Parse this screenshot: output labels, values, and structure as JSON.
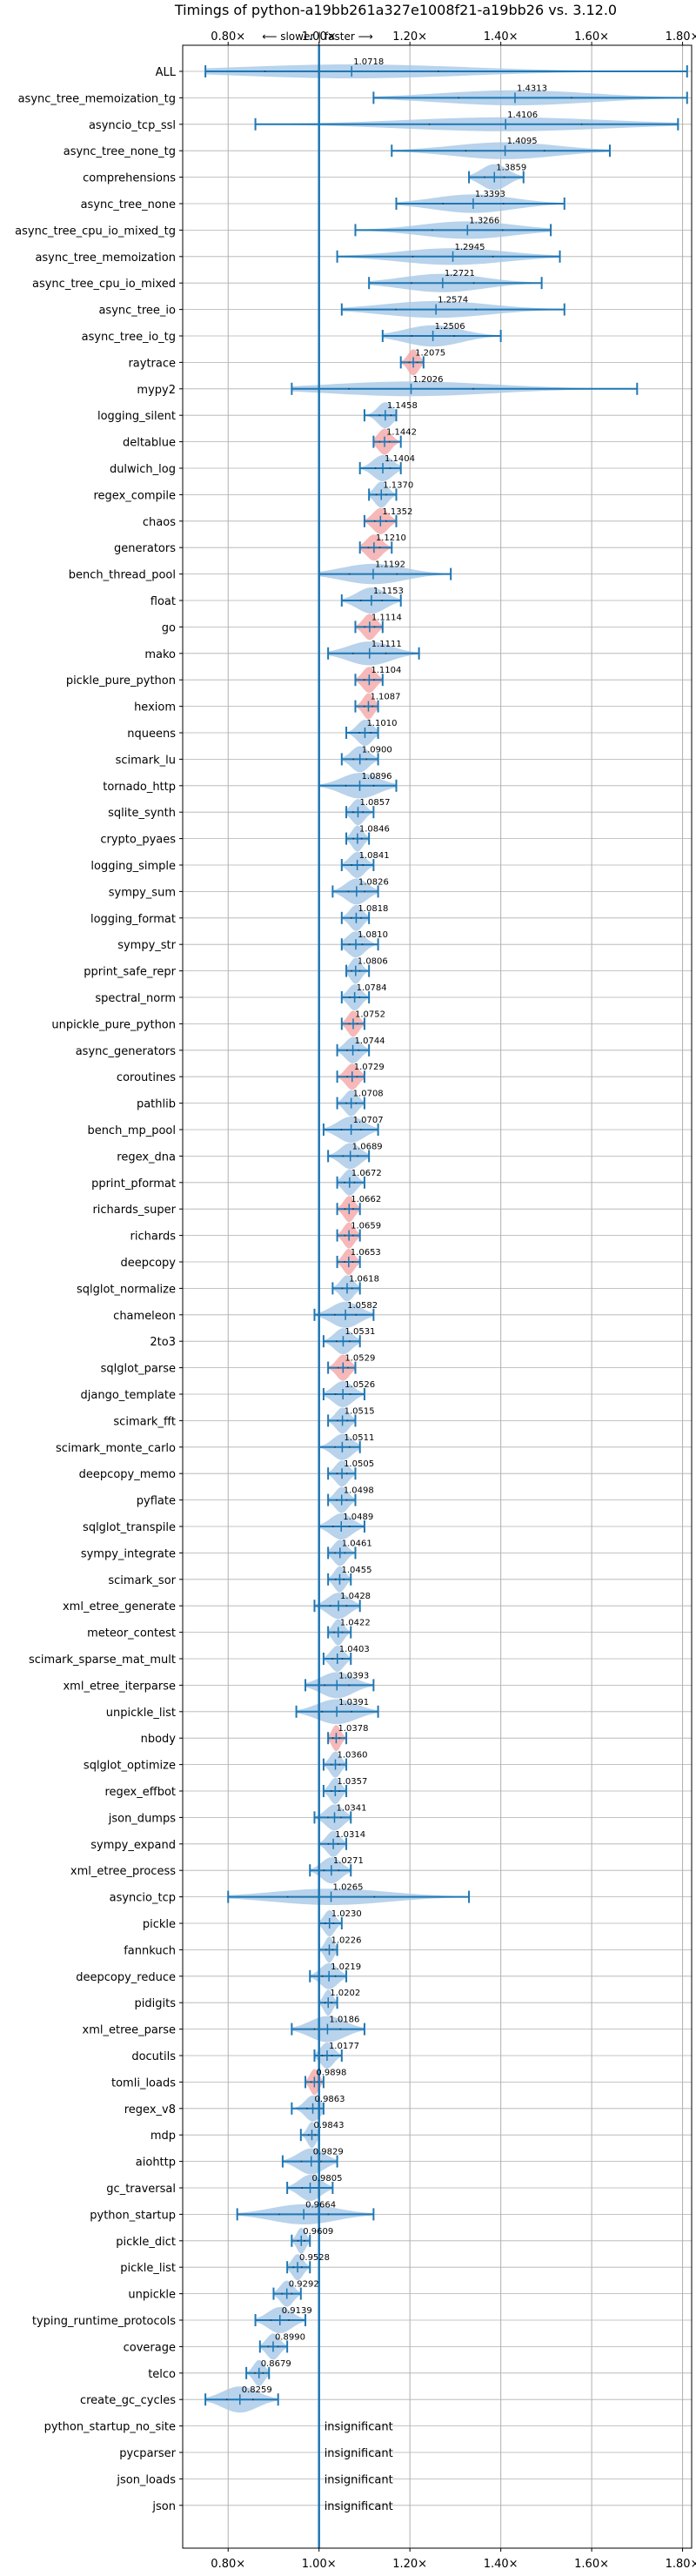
{
  "chart_data": {
    "type": "violin",
    "title": "Timings of python-a19bb261a327e1008f21-a19bb26 vs. 3.12.0",
    "direction_label": "⟵ slower | faster ⟶",
    "xlim": [
      0.7,
      1.82
    ],
    "x_ticks": [
      0.8,
      1.0,
      1.2,
      1.4,
      1.6,
      1.8
    ],
    "x_tick_labels": [
      "0.80×",
      "1.00×",
      "1.20×",
      "1.40×",
      "1.60×",
      "1.80×"
    ],
    "grid": true,
    "insignificant_text": "insignificant",
    "colors": {
      "violin": "#a6c8e6",
      "highlight": "#f4a6a6",
      "line": "#1f77b4",
      "grid": "#b0b0b0"
    },
    "benchmarks": [
      {
        "name": "ALL",
        "value": 1.0718,
        "label": "1.0718",
        "min": 0.75,
        "max": 1.81,
        "highlight": false,
        "insignificant": false
      },
      {
        "name": "async_tree_memoization_tg",
        "value": 1.4313,
        "label": "1.4313",
        "min": 1.12,
        "max": 1.81,
        "highlight": false,
        "insignificant": false
      },
      {
        "name": "asyncio_tcp_ssl",
        "value": 1.4106,
        "label": "1.4106",
        "min": 0.86,
        "max": 1.79,
        "highlight": false,
        "insignificant": false
      },
      {
        "name": "async_tree_none_tg",
        "value": 1.4095,
        "label": "1.4095",
        "min": 1.16,
        "max": 1.64,
        "highlight": false,
        "insignificant": false
      },
      {
        "name": "comprehensions",
        "value": 1.3859,
        "label": "1.3859",
        "min": 1.33,
        "max": 1.45,
        "highlight": false,
        "insignificant": false
      },
      {
        "name": "async_tree_none",
        "value": 1.3393,
        "label": "1.3393",
        "min": 1.17,
        "max": 1.54,
        "highlight": false,
        "insignificant": false
      },
      {
        "name": "async_tree_cpu_io_mixed_tg",
        "value": 1.3266,
        "label": "1.3266",
        "min": 1.08,
        "max": 1.51,
        "highlight": false,
        "insignificant": false
      },
      {
        "name": "async_tree_memoization",
        "value": 1.2945,
        "label": "1.2945",
        "min": 1.04,
        "max": 1.53,
        "highlight": false,
        "insignificant": false
      },
      {
        "name": "async_tree_cpu_io_mixed",
        "value": 1.2721,
        "label": "1.2721",
        "min": 1.11,
        "max": 1.49,
        "highlight": false,
        "insignificant": false
      },
      {
        "name": "async_tree_io",
        "value": 1.2574,
        "label": "1.2574",
        "min": 1.05,
        "max": 1.54,
        "highlight": false,
        "insignificant": false
      },
      {
        "name": "async_tree_io_tg",
        "value": 1.2506,
        "label": "1.2506",
        "min": 1.14,
        "max": 1.4,
        "highlight": false,
        "insignificant": false
      },
      {
        "name": "raytrace",
        "value": 1.2075,
        "label": "1.2075",
        "min": 1.18,
        "max": 1.23,
        "highlight": true,
        "insignificant": false
      },
      {
        "name": "mypy2",
        "value": 1.2026,
        "label": "1.2026",
        "min": 0.94,
        "max": 1.7,
        "highlight": false,
        "insignificant": false
      },
      {
        "name": "logging_silent",
        "value": 1.1458,
        "label": "1.1458",
        "min": 1.1,
        "max": 1.17,
        "highlight": false,
        "insignificant": false
      },
      {
        "name": "deltablue",
        "value": 1.1442,
        "label": "1.1442",
        "min": 1.12,
        "max": 1.18,
        "highlight": true,
        "insignificant": false
      },
      {
        "name": "dulwich_log",
        "value": 1.1404,
        "label": "1.1404",
        "min": 1.09,
        "max": 1.18,
        "highlight": false,
        "insignificant": false
      },
      {
        "name": "regex_compile",
        "value": 1.137,
        "label": "1.1370",
        "min": 1.11,
        "max": 1.17,
        "highlight": false,
        "insignificant": false
      },
      {
        "name": "chaos",
        "value": 1.1352,
        "label": "1.1352",
        "min": 1.1,
        "max": 1.17,
        "highlight": true,
        "insignificant": false
      },
      {
        "name": "generators",
        "value": 1.121,
        "label": "1.1210",
        "min": 1.09,
        "max": 1.16,
        "highlight": true,
        "insignificant": false
      },
      {
        "name": "bench_thread_pool",
        "value": 1.1192,
        "label": "1.1192",
        "min": 1.0,
        "max": 1.29,
        "highlight": false,
        "insignificant": false
      },
      {
        "name": "float",
        "value": 1.1153,
        "label": "1.1153",
        "min": 1.05,
        "max": 1.18,
        "highlight": false,
        "insignificant": false
      },
      {
        "name": "go",
        "value": 1.1114,
        "label": "1.1114",
        "min": 1.08,
        "max": 1.14,
        "highlight": true,
        "insignificant": false
      },
      {
        "name": "mako",
        "value": 1.1111,
        "label": "1.1111",
        "min": 1.02,
        "max": 1.22,
        "highlight": false,
        "insignificant": false
      },
      {
        "name": "pickle_pure_python",
        "value": 1.1104,
        "label": "1.1104",
        "min": 1.08,
        "max": 1.14,
        "highlight": true,
        "insignificant": false
      },
      {
        "name": "hexiom",
        "value": 1.1087,
        "label": "1.1087",
        "min": 1.08,
        "max": 1.13,
        "highlight": true,
        "insignificant": false
      },
      {
        "name": "nqueens",
        "value": 1.101,
        "label": "1.1010",
        "min": 1.06,
        "max": 1.13,
        "highlight": false,
        "insignificant": false
      },
      {
        "name": "scimark_lu",
        "value": 1.09,
        "label": "1.0900",
        "min": 1.05,
        "max": 1.13,
        "highlight": false,
        "insignificant": false
      },
      {
        "name": "tornado_http",
        "value": 1.0896,
        "label": "1.0896",
        "min": 1.0,
        "max": 1.17,
        "highlight": false,
        "insignificant": false
      },
      {
        "name": "sqlite_synth",
        "value": 1.0857,
        "label": "1.0857",
        "min": 1.06,
        "max": 1.12,
        "highlight": false,
        "insignificant": false
      },
      {
        "name": "crypto_pyaes",
        "value": 1.0846,
        "label": "1.0846",
        "min": 1.06,
        "max": 1.11,
        "highlight": false,
        "insignificant": false
      },
      {
        "name": "logging_simple",
        "value": 1.0841,
        "label": "1.0841",
        "min": 1.05,
        "max": 1.12,
        "highlight": false,
        "insignificant": false
      },
      {
        "name": "sympy_sum",
        "value": 1.0826,
        "label": "1.0826",
        "min": 1.03,
        "max": 1.13,
        "highlight": false,
        "insignificant": false
      },
      {
        "name": "logging_format",
        "value": 1.0818,
        "label": "1.0818",
        "min": 1.05,
        "max": 1.11,
        "highlight": false,
        "insignificant": false
      },
      {
        "name": "sympy_str",
        "value": 1.081,
        "label": "1.0810",
        "min": 1.05,
        "max": 1.13,
        "highlight": false,
        "insignificant": false
      },
      {
        "name": "pprint_safe_repr",
        "value": 1.0806,
        "label": "1.0806",
        "min": 1.06,
        "max": 1.11,
        "highlight": false,
        "insignificant": false
      },
      {
        "name": "spectral_norm",
        "value": 1.0784,
        "label": "1.0784",
        "min": 1.05,
        "max": 1.11,
        "highlight": false,
        "insignificant": false
      },
      {
        "name": "unpickle_pure_python",
        "value": 1.0752,
        "label": "1.0752",
        "min": 1.05,
        "max": 1.1,
        "highlight": true,
        "insignificant": false
      },
      {
        "name": "async_generators",
        "value": 1.0744,
        "label": "1.0744",
        "min": 1.04,
        "max": 1.11,
        "highlight": false,
        "insignificant": false
      },
      {
        "name": "coroutines",
        "value": 1.0729,
        "label": "1.0729",
        "min": 1.04,
        "max": 1.1,
        "highlight": true,
        "insignificant": false
      },
      {
        "name": "pathlib",
        "value": 1.0708,
        "label": "1.0708",
        "min": 1.04,
        "max": 1.1,
        "highlight": false,
        "insignificant": false
      },
      {
        "name": "bench_mp_pool",
        "value": 1.0707,
        "label": "1.0707",
        "min": 1.01,
        "max": 1.13,
        "highlight": false,
        "insignificant": false
      },
      {
        "name": "regex_dna",
        "value": 1.0689,
        "label": "1.0689",
        "min": 1.02,
        "max": 1.11,
        "highlight": false,
        "insignificant": false
      },
      {
        "name": "pprint_pformat",
        "value": 1.0672,
        "label": "1.0672",
        "min": 1.04,
        "max": 1.1,
        "highlight": false,
        "insignificant": false
      },
      {
        "name": "richards_super",
        "value": 1.0662,
        "label": "1.0662",
        "min": 1.04,
        "max": 1.09,
        "highlight": true,
        "insignificant": false
      },
      {
        "name": "richards",
        "value": 1.0659,
        "label": "1.0659",
        "min": 1.04,
        "max": 1.09,
        "highlight": true,
        "insignificant": false
      },
      {
        "name": "deepcopy",
        "value": 1.0653,
        "label": "1.0653",
        "min": 1.04,
        "max": 1.09,
        "highlight": true,
        "insignificant": false
      },
      {
        "name": "sqlglot_normalize",
        "value": 1.0618,
        "label": "1.0618",
        "min": 1.03,
        "max": 1.09,
        "highlight": false,
        "insignificant": false
      },
      {
        "name": "chameleon",
        "value": 1.0582,
        "label": "1.0582",
        "min": 0.99,
        "max": 1.12,
        "highlight": false,
        "insignificant": false
      },
      {
        "name": "2to3",
        "value": 1.0531,
        "label": "1.0531",
        "min": 1.01,
        "max": 1.09,
        "highlight": false,
        "insignificant": false
      },
      {
        "name": "sqlglot_parse",
        "value": 1.0529,
        "label": "1.0529",
        "min": 1.02,
        "max": 1.08,
        "highlight": true,
        "insignificant": false
      },
      {
        "name": "django_template",
        "value": 1.0526,
        "label": "1.0526",
        "min": 1.01,
        "max": 1.1,
        "highlight": false,
        "insignificant": false
      },
      {
        "name": "scimark_fft",
        "value": 1.0515,
        "label": "1.0515",
        "min": 1.02,
        "max": 1.08,
        "highlight": false,
        "insignificant": false
      },
      {
        "name": "scimark_monte_carlo",
        "value": 1.0511,
        "label": "1.0511",
        "min": 1.0,
        "max": 1.09,
        "highlight": false,
        "insignificant": false
      },
      {
        "name": "deepcopy_memo",
        "value": 1.0505,
        "label": "1.0505",
        "min": 1.02,
        "max": 1.08,
        "highlight": false,
        "insignificant": false
      },
      {
        "name": "pyflate",
        "value": 1.0498,
        "label": "1.0498",
        "min": 1.02,
        "max": 1.08,
        "highlight": false,
        "insignificant": false
      },
      {
        "name": "sqlglot_transpile",
        "value": 1.0489,
        "label": "1.0489",
        "min": 1.0,
        "max": 1.1,
        "highlight": false,
        "insignificant": false
      },
      {
        "name": "sympy_integrate",
        "value": 1.0461,
        "label": "1.0461",
        "min": 1.02,
        "max": 1.08,
        "highlight": false,
        "insignificant": false
      },
      {
        "name": "scimark_sor",
        "value": 1.0455,
        "label": "1.0455",
        "min": 1.02,
        "max": 1.07,
        "highlight": false,
        "insignificant": false
      },
      {
        "name": "xml_etree_generate",
        "value": 1.0428,
        "label": "1.0428",
        "min": 0.99,
        "max": 1.09,
        "highlight": false,
        "insignificant": false
      },
      {
        "name": "meteor_contest",
        "value": 1.0422,
        "label": "1.0422",
        "min": 1.02,
        "max": 1.07,
        "highlight": false,
        "insignificant": false
      },
      {
        "name": "scimark_sparse_mat_mult",
        "value": 1.0403,
        "label": "1.0403",
        "min": 1.01,
        "max": 1.07,
        "highlight": false,
        "insignificant": false
      },
      {
        "name": "xml_etree_iterparse",
        "value": 1.0393,
        "label": "1.0393",
        "min": 0.97,
        "max": 1.12,
        "highlight": false,
        "insignificant": false
      },
      {
        "name": "unpickle_list",
        "value": 1.0391,
        "label": "1.0391",
        "min": 0.95,
        "max": 1.13,
        "highlight": false,
        "insignificant": false
      },
      {
        "name": "nbody",
        "value": 1.0378,
        "label": "1.0378",
        "min": 1.02,
        "max": 1.06,
        "highlight": true,
        "insignificant": false
      },
      {
        "name": "sqlglot_optimize",
        "value": 1.036,
        "label": "1.0360",
        "min": 1.01,
        "max": 1.06,
        "highlight": false,
        "insignificant": false
      },
      {
        "name": "regex_effbot",
        "value": 1.0357,
        "label": "1.0357",
        "min": 1.01,
        "max": 1.06,
        "highlight": false,
        "insignificant": false
      },
      {
        "name": "json_dumps",
        "value": 1.0341,
        "label": "1.0341",
        "min": 0.99,
        "max": 1.07,
        "highlight": false,
        "insignificant": false
      },
      {
        "name": "sympy_expand",
        "value": 1.0314,
        "label": "1.0314",
        "min": 1.0,
        "max": 1.06,
        "highlight": false,
        "insignificant": false
      },
      {
        "name": "xml_etree_process",
        "value": 1.0271,
        "label": "1.0271",
        "min": 0.98,
        "max": 1.07,
        "highlight": false,
        "insignificant": false
      },
      {
        "name": "asyncio_tcp",
        "value": 1.0265,
        "label": "1.0265",
        "min": 0.8,
        "max": 1.33,
        "highlight": false,
        "insignificant": false
      },
      {
        "name": "pickle",
        "value": 1.023,
        "label": "1.0230",
        "min": 1.0,
        "max": 1.05,
        "highlight": false,
        "insignificant": false
      },
      {
        "name": "fannkuch",
        "value": 1.0226,
        "label": "1.0226",
        "min": 1.0,
        "max": 1.04,
        "highlight": false,
        "insignificant": false
      },
      {
        "name": "deepcopy_reduce",
        "value": 1.0219,
        "label": "1.0219",
        "min": 0.98,
        "max": 1.06,
        "highlight": false,
        "insignificant": false
      },
      {
        "name": "pidigits",
        "value": 1.0202,
        "label": "1.0202",
        "min": 1.0,
        "max": 1.04,
        "highlight": false,
        "insignificant": false
      },
      {
        "name": "xml_etree_parse",
        "value": 1.0186,
        "label": "1.0186",
        "min": 0.94,
        "max": 1.1,
        "highlight": false,
        "insignificant": false
      },
      {
        "name": "docutils",
        "value": 1.0177,
        "label": "1.0177",
        "min": 0.99,
        "max": 1.05,
        "highlight": false,
        "insignificant": false
      },
      {
        "name": "tomli_loads",
        "value": 0.9898,
        "label": "0.9898",
        "min": 0.97,
        "max": 1.01,
        "highlight": true,
        "insignificant": false
      },
      {
        "name": "regex_v8",
        "value": 0.9863,
        "label": "0.9863",
        "min": 0.94,
        "max": 1.01,
        "highlight": false,
        "insignificant": false
      },
      {
        "name": "mdp",
        "value": 0.9843,
        "label": "0.9843",
        "min": 0.96,
        "max": 1.0,
        "highlight": false,
        "insignificant": false
      },
      {
        "name": "aiohttp",
        "value": 0.9829,
        "label": "0.9829",
        "min": 0.92,
        "max": 1.04,
        "highlight": false,
        "insignificant": false
      },
      {
        "name": "gc_traversal",
        "value": 0.9805,
        "label": "0.9805",
        "min": 0.93,
        "max": 1.03,
        "highlight": false,
        "insignificant": false
      },
      {
        "name": "python_startup",
        "value": 0.9664,
        "label": "0.9664",
        "min": 0.82,
        "max": 1.12,
        "highlight": false,
        "insignificant": false
      },
      {
        "name": "pickle_dict",
        "value": 0.9609,
        "label": "0.9609",
        "min": 0.94,
        "max": 0.98,
        "highlight": false,
        "insignificant": false
      },
      {
        "name": "pickle_list",
        "value": 0.9528,
        "label": "0.9528",
        "min": 0.93,
        "max": 0.98,
        "highlight": false,
        "insignificant": false
      },
      {
        "name": "unpickle",
        "value": 0.9292,
        "label": "0.9292",
        "min": 0.9,
        "max": 0.96,
        "highlight": false,
        "insignificant": false
      },
      {
        "name": "typing_runtime_protocols",
        "value": 0.9139,
        "label": "0.9139",
        "min": 0.86,
        "max": 0.97,
        "highlight": false,
        "insignificant": false
      },
      {
        "name": "coverage",
        "value": 0.899,
        "label": "0.8990",
        "min": 0.87,
        "max": 0.93,
        "highlight": false,
        "insignificant": false
      },
      {
        "name": "telco",
        "value": 0.8679,
        "label": "0.8679",
        "min": 0.84,
        "max": 0.89,
        "highlight": false,
        "insignificant": false
      },
      {
        "name": "create_gc_cycles",
        "value": 0.8259,
        "label": "0.8259",
        "min": 0.75,
        "max": 0.91,
        "highlight": false,
        "insignificant": false
      },
      {
        "name": "python_startup_no_site",
        "value": null,
        "label": "",
        "min": null,
        "max": null,
        "highlight": false,
        "insignificant": true
      },
      {
        "name": "pycparser",
        "value": null,
        "label": "",
        "min": null,
        "max": null,
        "highlight": false,
        "insignificant": true
      },
      {
        "name": "json_loads",
        "value": null,
        "label": "",
        "min": null,
        "max": null,
        "highlight": false,
        "insignificant": true
      },
      {
        "name": "json",
        "value": null,
        "label": "",
        "min": null,
        "max": null,
        "highlight": false,
        "insignificant": true
      }
    ]
  }
}
